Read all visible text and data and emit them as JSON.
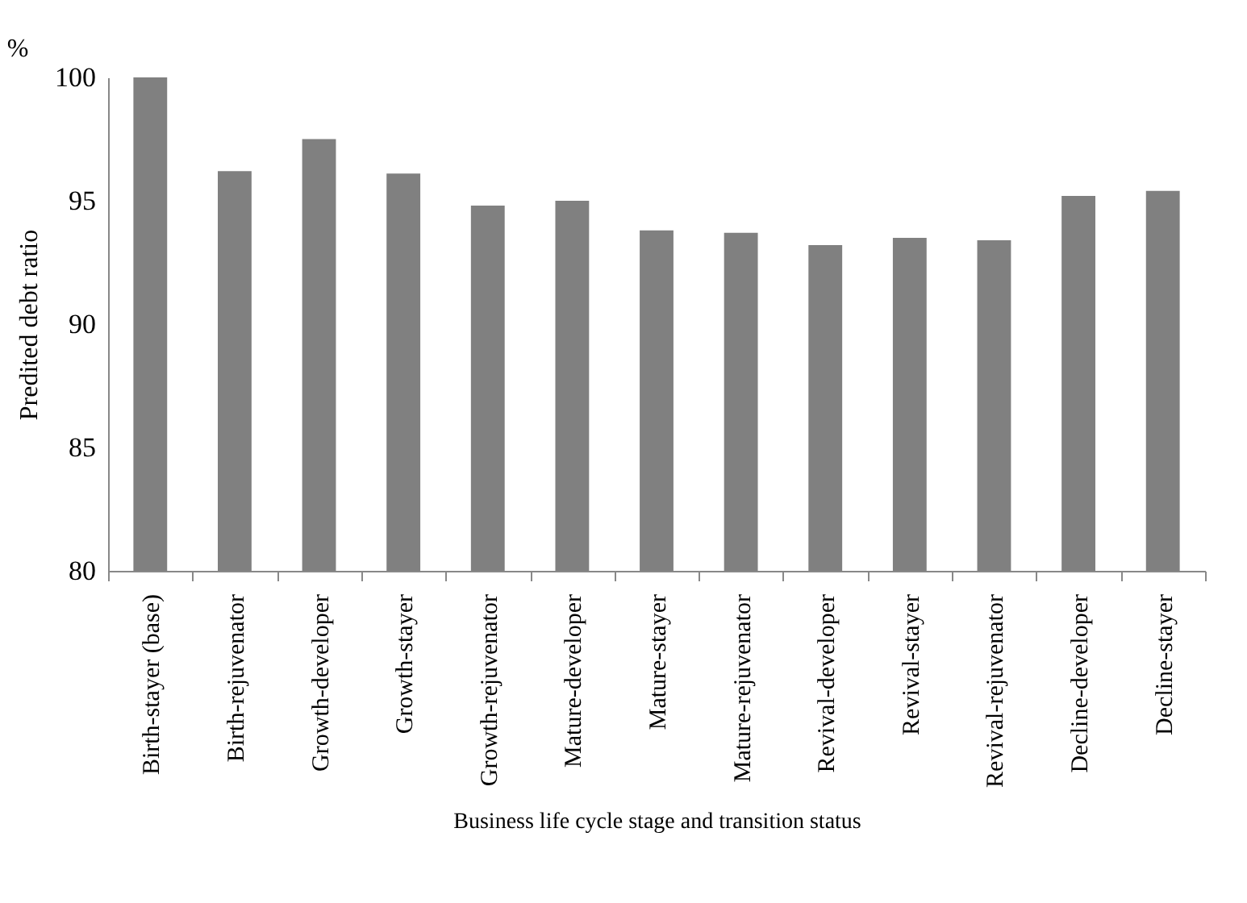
{
  "chart_data": {
    "type": "bar",
    "categories": [
      "Birth-stayer (base)",
      "Birth-rejuvenator",
      "Growth-developer",
      "Growth-stayer",
      "Growth-rejuvenator",
      "Mature-developer",
      "Mature-stayer",
      "Mature-rejuvenator",
      "Revival-developer",
      "Revival-stayer",
      "Revival-rejuvenator",
      "Decline-developer",
      "Decline-stayer"
    ],
    "values": [
      100,
      96.2,
      97.5,
      96.1,
      94.8,
      95.0,
      93.8,
      93.7,
      93.2,
      93.5,
      93.4,
      95.2,
      95.4
    ],
    "color": "#808080",
    "xlabel": "Business life cycle stage and transition status",
    "ylabel": "Predited debt ratio",
    "annotations": [
      "%"
    ],
    "ylim": [
      80,
      100
    ],
    "yticks": [
      80,
      85,
      90,
      95,
      100
    ],
    "grid": false
  }
}
